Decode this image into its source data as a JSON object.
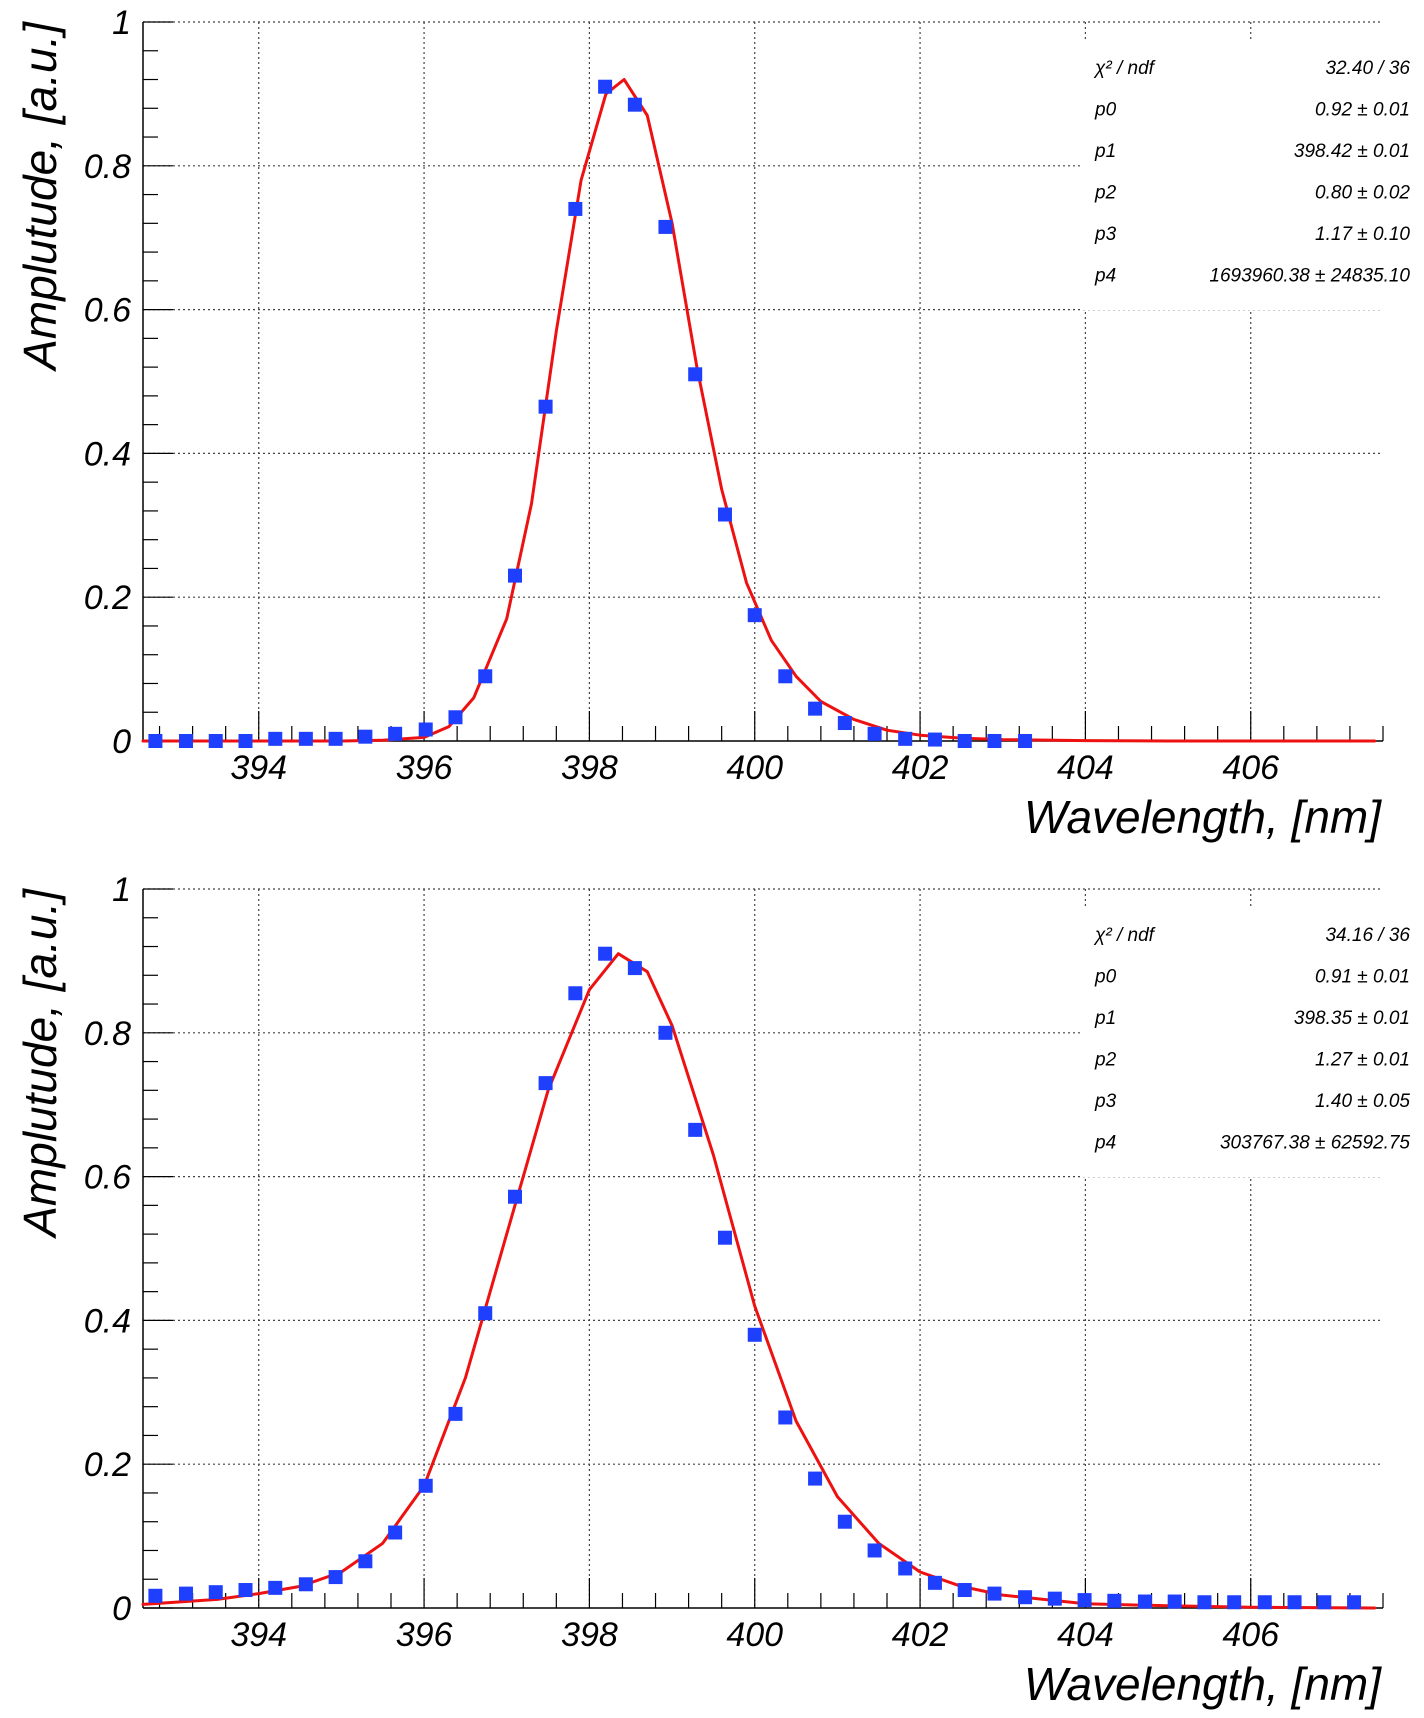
{
  "colors": {
    "points": "#1f3fff",
    "fit": "#ee1111",
    "grid": "#444444",
    "axes": "#000000"
  },
  "chart_data": [
    {
      "type": "scatter",
      "xlabel": "Wavelength, [nm]",
      "ylabel": "Amplutude, [a.u.]",
      "xlim": [
        392.6,
        407.6
      ],
      "ylim": [
        0,
        1
      ],
      "xticks": [
        394,
        396,
        398,
        400,
        402,
        404,
        406
      ],
      "xtick_labels": [
        "394",
        "396",
        "398",
        "400",
        "402",
        "404",
        "406"
      ],
      "yticks": [
        0,
        0.2,
        0.4,
        0.6,
        0.8,
        1
      ],
      "ytick_labels": [
        "0",
        "0.2",
        "0.4",
        "0.6",
        "0.8",
        "1"
      ],
      "grid": true,
      "series": [
        {
          "name": "data",
          "x": [
            392.75,
            393.12,
            393.48,
            393.84,
            394.2,
            394.57,
            394.93,
            395.29,
            395.65,
            396.02,
            396.38,
            396.74,
            397.1,
            397.47,
            397.83,
            398.19,
            398.55,
            398.92,
            399.28,
            399.64,
            400.0,
            400.37,
            400.73,
            401.09,
            401.45,
            401.82,
            402.18,
            402.54,
            402.9,
            403.27
          ],
          "y": [
            0.0,
            0.0,
            0.0,
            0.0,
            0.003,
            0.003,
            0.003,
            0.006,
            0.01,
            0.016,
            0.033,
            0.09,
            0.23,
            0.465,
            0.74,
            0.91,
            0.885,
            0.715,
            0.51,
            0.315,
            0.175,
            0.09,
            0.045,
            0.025,
            0.01,
            0.003,
            0.002,
            0.0,
            0.0,
            0.0
          ]
        },
        {
          "name": "fit",
          "style": "line",
          "x": [
            392.6,
            395.0,
            395.5,
            396.0,
            396.3,
            396.6,
            397.0,
            397.3,
            397.6,
            397.9,
            398.2,
            398.42,
            398.7,
            399.0,
            399.3,
            399.6,
            399.9,
            400.2,
            400.5,
            400.8,
            401.2,
            401.6,
            402.0,
            402.5,
            403.0,
            404.0,
            405.0,
            407.5
          ],
          "y": [
            0.0,
            0.0,
            0.001,
            0.005,
            0.02,
            0.06,
            0.17,
            0.33,
            0.57,
            0.78,
            0.9,
            0.92,
            0.87,
            0.72,
            0.52,
            0.35,
            0.22,
            0.14,
            0.09,
            0.055,
            0.03,
            0.015,
            0.008,
            0.004,
            0.002,
            0.0005,
            0.0,
            0.0
          ]
        }
      ],
      "stats": [
        {
          "label": "χ² / ndf",
          "value": "32.40 / 36"
        },
        {
          "label": "p0",
          "value": "0.92 ±  0.01"
        },
        {
          "label": "p1",
          "value": "398.42 ±  0.01"
        },
        {
          "label": "p2",
          "value": "0.80 ±  0.02"
        },
        {
          "label": "p3",
          "value": "1.17 ±  0.10"
        },
        {
          "label": "p4",
          "value": "1693960.38 ± 24835.10"
        }
      ]
    },
    {
      "type": "scatter",
      "xlabel": "Wavelength, [nm]",
      "ylabel": "Amplutude, [a.u.]",
      "xlim": [
        392.6,
        407.6
      ],
      "ylim": [
        0,
        1
      ],
      "xticks": [
        394,
        396,
        398,
        400,
        402,
        404,
        406
      ],
      "xtick_labels": [
        "394",
        "396",
        "398",
        "400",
        "402",
        "404",
        "406"
      ],
      "yticks": [
        0,
        0.2,
        0.4,
        0.6,
        0.8,
        1
      ],
      "ytick_labels": [
        "0",
        "0.2",
        "0.4",
        "0.6",
        "0.8",
        "1"
      ],
      "grid": true,
      "series": [
        {
          "name": "data",
          "x": [
            392.75,
            393.12,
            393.48,
            393.84,
            394.2,
            394.57,
            394.93,
            395.29,
            395.65,
            396.02,
            396.38,
            396.74,
            397.1,
            397.47,
            397.83,
            398.19,
            398.55,
            398.92,
            399.28,
            399.64,
            400.0,
            400.37,
            400.73,
            401.09,
            401.45,
            401.82,
            402.18,
            402.54,
            402.9,
            403.27,
            403.63,
            403.99,
            404.35,
            404.72,
            405.08,
            405.44,
            405.8,
            406.17,
            406.53,
            406.89,
            407.25
          ],
          "y": [
            0.017,
            0.02,
            0.022,
            0.025,
            0.028,
            0.033,
            0.043,
            0.065,
            0.105,
            0.17,
            0.27,
            0.41,
            0.572,
            0.73,
            0.855,
            0.91,
            0.89,
            0.8,
            0.665,
            0.515,
            0.38,
            0.265,
            0.18,
            0.12,
            0.08,
            0.055,
            0.035,
            0.025,
            0.02,
            0.015,
            0.013,
            0.011,
            0.01,
            0.009,
            0.009,
            0.008,
            0.008,
            0.008,
            0.008,
            0.008,
            0.008
          ]
        },
        {
          "name": "fit",
          "style": "line",
          "x": [
            392.6,
            393.5,
            394.0,
            394.5,
            395.0,
            395.5,
            396.0,
            396.5,
            397.0,
            397.5,
            398.0,
            398.35,
            398.7,
            399.0,
            399.5,
            400.0,
            400.5,
            401.0,
            401.5,
            402.0,
            402.5,
            403.0,
            404.0,
            405.0,
            406.0,
            407.5
          ],
          "y": [
            0.005,
            0.012,
            0.02,
            0.03,
            0.05,
            0.09,
            0.17,
            0.32,
            0.52,
            0.72,
            0.86,
            0.91,
            0.885,
            0.81,
            0.63,
            0.42,
            0.26,
            0.155,
            0.09,
            0.05,
            0.03,
            0.018,
            0.006,
            0.003,
            0.001,
            0.0
          ]
        }
      ],
      "stats": [
        {
          "label": "χ² / ndf",
          "value": "34.16 / 36"
        },
        {
          "label": "p0",
          "value": "0.91 ±  0.01"
        },
        {
          "label": "p1",
          "value": "398.35 ±  0.01"
        },
        {
          "label": "p2",
          "value": "1.27 ±  0.01"
        },
        {
          "label": "p3",
          "value": "1.40 ±  0.05"
        },
        {
          "label": "p4",
          "value": "303767.38 ± 62592.75"
        }
      ]
    }
  ]
}
